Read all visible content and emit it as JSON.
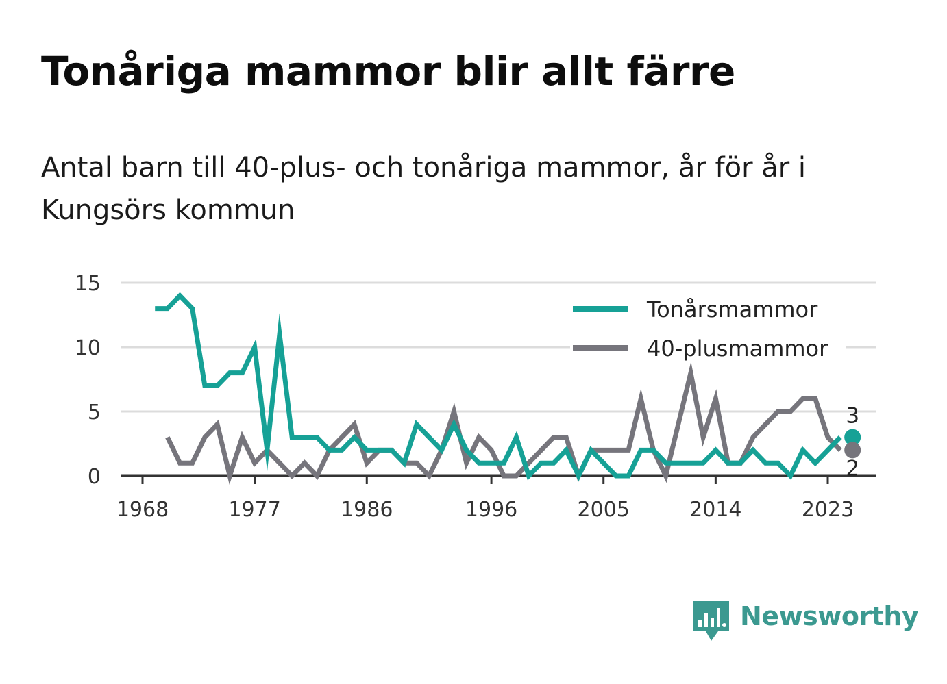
{
  "title": "Tonåriga mammor blir allt färre",
  "subtitle": "Antal barn till 40-plus- och tonåriga mammor, år för år i Kungsörs kommun",
  "brand": {
    "name": "Newsworthy",
    "color": "#3b9990",
    "icon": "newsworthy-chart-icon"
  },
  "chart_data": {
    "type": "line",
    "xlim": [
      1968,
      2025
    ],
    "ylim": [
      0,
      15
    ],
    "x_ticks": [
      1968,
      1977,
      1986,
      1996,
      2005,
      2014,
      2023
    ],
    "y_ticks": [
      0,
      5,
      10,
      15
    ],
    "grid": true,
    "legend_position": "top-right",
    "series": [
      {
        "name": "Tonårsmammor",
        "color": "#16a196",
        "end_label": "3",
        "x": [
          1969,
          1970,
          1971,
          1972,
          1973,
          1974,
          1975,
          1976,
          1977,
          1978,
          1979,
          1980,
          1981,
          1982,
          1983,
          1984,
          1985,
          1986,
          1987,
          1988,
          1989,
          1990,
          1991,
          1992,
          1993,
          1994,
          1995,
          1996,
          1997,
          1998,
          1999,
          2000,
          2001,
          2002,
          2003,
          2004,
          2005,
          2006,
          2007,
          2008,
          2009,
          2010,
          2011,
          2012,
          2013,
          2014,
          2015,
          2016,
          2017,
          2018,
          2019,
          2020,
          2021,
          2022,
          2023,
          2024
        ],
        "y": [
          13,
          13,
          14,
          13,
          7,
          7,
          8,
          8,
          10,
          2,
          11,
          3,
          3,
          3,
          2,
          2,
          3,
          2,
          2,
          2,
          1,
          4,
          3,
          2,
          4,
          2,
          1,
          1,
          1,
          3,
          0,
          1,
          1,
          2,
          0,
          2,
          1,
          0,
          0,
          2,
          2,
          1,
          1,
          1,
          1,
          2,
          1,
          1,
          2,
          1,
          1,
          0,
          2,
          1,
          2,
          3
        ]
      },
      {
        "name": "40-plusmammor",
        "color": "#76757c",
        "end_label": "2",
        "x": [
          1970,
          1971,
          1972,
          1973,
          1974,
          1975,
          1976,
          1977,
          1978,
          1979,
          1980,
          1981,
          1982,
          1983,
          1984,
          1985,
          1986,
          1987,
          1988,
          1989,
          1990,
          1991,
          1992,
          1993,
          1994,
          1995,
          1996,
          1997,
          1998,
          1999,
          2000,
          2001,
          2002,
          2003,
          2004,
          2005,
          2006,
          2007,
          2008,
          2009,
          2010,
          2011,
          2012,
          2013,
          2014,
          2015,
          2016,
          2017,
          2018,
          2019,
          2020,
          2021,
          2022,
          2023,
          2024
        ],
        "y": [
          3,
          1,
          1,
          3,
          4,
          0,
          3,
          1,
          2,
          1,
          0,
          1,
          0,
          2,
          3,
          4,
          1,
          2,
          2,
          1,
          1,
          0,
          2,
          5,
          1,
          3,
          2,
          0,
          0,
          1,
          2,
          3,
          3,
          0,
          2,
          2,
          2,
          2,
          6,
          2,
          0,
          4,
          8,
          3,
          6,
          1,
          1,
          3,
          4,
          5,
          5,
          6,
          6,
          3,
          2
        ]
      }
    ]
  }
}
